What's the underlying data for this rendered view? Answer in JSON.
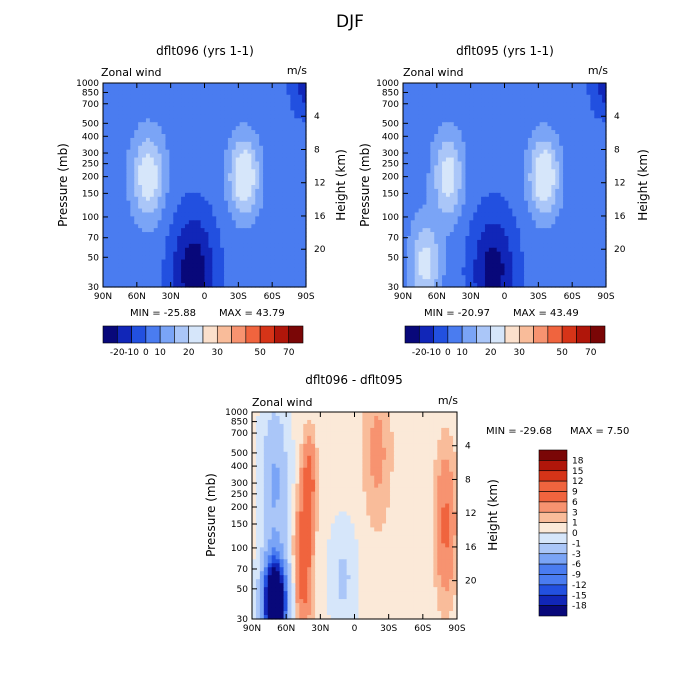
{
  "figure_title": "DJF",
  "colors": {
    "full": [
      "#08087a",
      "#1126b8",
      "#2250e0",
      "#4a7cf0",
      "#7aa4f6",
      "#aac6f8",
      "#d6e6fa",
      "#fbe0cc",
      "#f9bc9a",
      "#f79370",
      "#f0643e",
      "#d63418",
      "#b0160a",
      "#7a0606"
    ],
    "diff": [
      "#08087a",
      "#1126b8",
      "#2250e0",
      "#4a7cf0",
      "#7aa4f6",
      "#aac6f8",
      "#d6e6fa",
      "#fbe9d8",
      "#f9bc9a",
      "#f79370",
      "#f0643e",
      "#d63418",
      "#b0160a",
      "#7a0606"
    ]
  },
  "chart_data": [
    {
      "type": "heatmap",
      "id": "panel1",
      "title": "dflt096 (yrs 1-1)",
      "variable_label": "Zonal wind",
      "units_label": "m/s",
      "xlabel": "",
      "ylabel": "Pressure (mb)",
      "ylabel_right": "Height (km)",
      "x_ticks": [
        "90N",
        "60N",
        "30N",
        "0",
        "30S",
        "60S",
        "90S"
      ],
      "y_ticks": [
        "30",
        "50",
        "70",
        "100",
        "150",
        "200",
        "250",
        "300",
        "400",
        "500",
        "700",
        "850",
        "1000"
      ],
      "y_right_ticks": [
        "4",
        "8",
        "12",
        "16",
        "20"
      ],
      "xlim": [
        90,
        -90
      ],
      "ylim": [
        1000,
        30
      ],
      "min_label": "MIN = -25.88",
      "max_label": "MAX =  43.79",
      "levels": [
        -20,
        -10,
        0,
        10,
        20,
        30,
        50,
        70
      ],
      "colorbar_ticks": [
        "-20",
        "-10",
        "0",
        "10",
        "20",
        "30",
        "50",
        "70"
      ],
      "field": {
        "base": 5,
        "features": [
          {
            "lat": -35,
            "p": 200,
            "amp": 40,
            "slat": 9,
            "sp": 0.45
          },
          {
            "lat": 50,
            "p": 200,
            "amp": 34,
            "slat": 10,
            "sp": 0.5
          },
          {
            "lat": 10,
            "p": 40,
            "amp": -32,
            "slat": 14,
            "sp": 0.7
          },
          {
            "lat": -90,
            "p": 900,
            "amp": -18,
            "slat": 10,
            "sp": 0.35
          }
        ]
      }
    },
    {
      "type": "heatmap",
      "id": "panel2",
      "title": "dflt095 (yrs 1-1)",
      "variable_label": "Zonal wind",
      "units_label": "m/s",
      "xlabel": "",
      "ylabel": "Pressure (mb)",
      "ylabel_right": "Height (km)",
      "x_ticks": [
        "90N",
        "60N",
        "30N",
        "0",
        "30S",
        "60S",
        "90S"
      ],
      "y_ticks": [
        "30",
        "50",
        "70",
        "100",
        "150",
        "200",
        "250",
        "300",
        "400",
        "500",
        "700",
        "850",
        "1000"
      ],
      "y_right_ticks": [
        "4",
        "8",
        "12",
        "16",
        "20"
      ],
      "xlim": [
        90,
        -90
      ],
      "ylim": [
        1000,
        30
      ],
      "min_label": "MIN = -20.97",
      "max_label": "MAX =  43.49",
      "levels": [
        -20,
        -10,
        0,
        10,
        20,
        30,
        50,
        70
      ],
      "colorbar_ticks": [
        "-20",
        "-10",
        "0",
        "10",
        "20",
        "30",
        "50",
        "70"
      ],
      "field": {
        "base": 5,
        "features": [
          {
            "lat": -35,
            "p": 200,
            "amp": 40,
            "slat": 9,
            "sp": 0.45
          },
          {
            "lat": 50,
            "p": 200,
            "amp": 32,
            "slat": 9,
            "sp": 0.5
          },
          {
            "lat": 70,
            "p": 45,
            "amp": 30,
            "slat": 9,
            "sp": 0.5
          },
          {
            "lat": 10,
            "p": 40,
            "amp": -30,
            "slat": 14,
            "sp": 0.7
          },
          {
            "lat": -90,
            "p": 900,
            "amp": -18,
            "slat": 10,
            "sp": 0.35
          }
        ]
      }
    },
    {
      "type": "heatmap",
      "id": "panel3",
      "title": "dflt096 - dflt095",
      "variable_label": "Zonal wind",
      "units_label": "m/s",
      "xlabel": "",
      "ylabel": "Pressure (mb)",
      "ylabel_right": "Height (km)",
      "x_ticks": [
        "90N",
        "60N",
        "30N",
        "0",
        "30S",
        "60S",
        "90S"
      ],
      "y_ticks": [
        "30",
        "50",
        "70",
        "100",
        "150",
        "200",
        "250",
        "300",
        "400",
        "500",
        "700",
        "850",
        "1000"
      ],
      "y_right_ticks": [
        "4",
        "8",
        "12",
        "16",
        "20"
      ],
      "xlim": [
        90,
        -90
      ],
      "ylim": [
        1000,
        30
      ],
      "min_label": "MIN = -29.68",
      "max_label": "MAX =    7.50",
      "levels": [
        -18,
        -15,
        -12,
        -9,
        -6,
        -3,
        -1,
        0,
        1,
        3,
        6,
        9,
        12,
        15,
        18
      ],
      "colorbar_ticks": [
        "18",
        "15",
        "12",
        "9",
        "6",
        "3",
        "1",
        "0",
        "-1",
        "-3",
        "-6",
        "-9",
        "-12",
        "-15",
        "-18"
      ],
      "field": {
        "base": -0.5,
        "features": [
          {
            "lat": 70,
            "p": 40,
            "amp": -30,
            "slat": 7,
            "sp": 0.5
          },
          {
            "lat": 70,
            "p": 300,
            "amp": -6,
            "slat": 8,
            "sp": 0.9
          },
          {
            "lat": 45,
            "p": 80,
            "amp": 6,
            "slat": 5,
            "sp": 0.7
          },
          {
            "lat": 40,
            "p": 300,
            "amp": 5,
            "slat": 4,
            "sp": 0.5
          },
          {
            "lat": -20,
            "p": 500,
            "amp": 2,
            "slat": 8,
            "sp": 0.8
          },
          {
            "lat": -80,
            "p": 150,
            "amp": 4,
            "slat": 6,
            "sp": 0.8
          },
          {
            "lat": 10,
            "p": 60,
            "amp": -3,
            "slat": 8,
            "sp": 0.6
          }
        ]
      }
    }
  ]
}
